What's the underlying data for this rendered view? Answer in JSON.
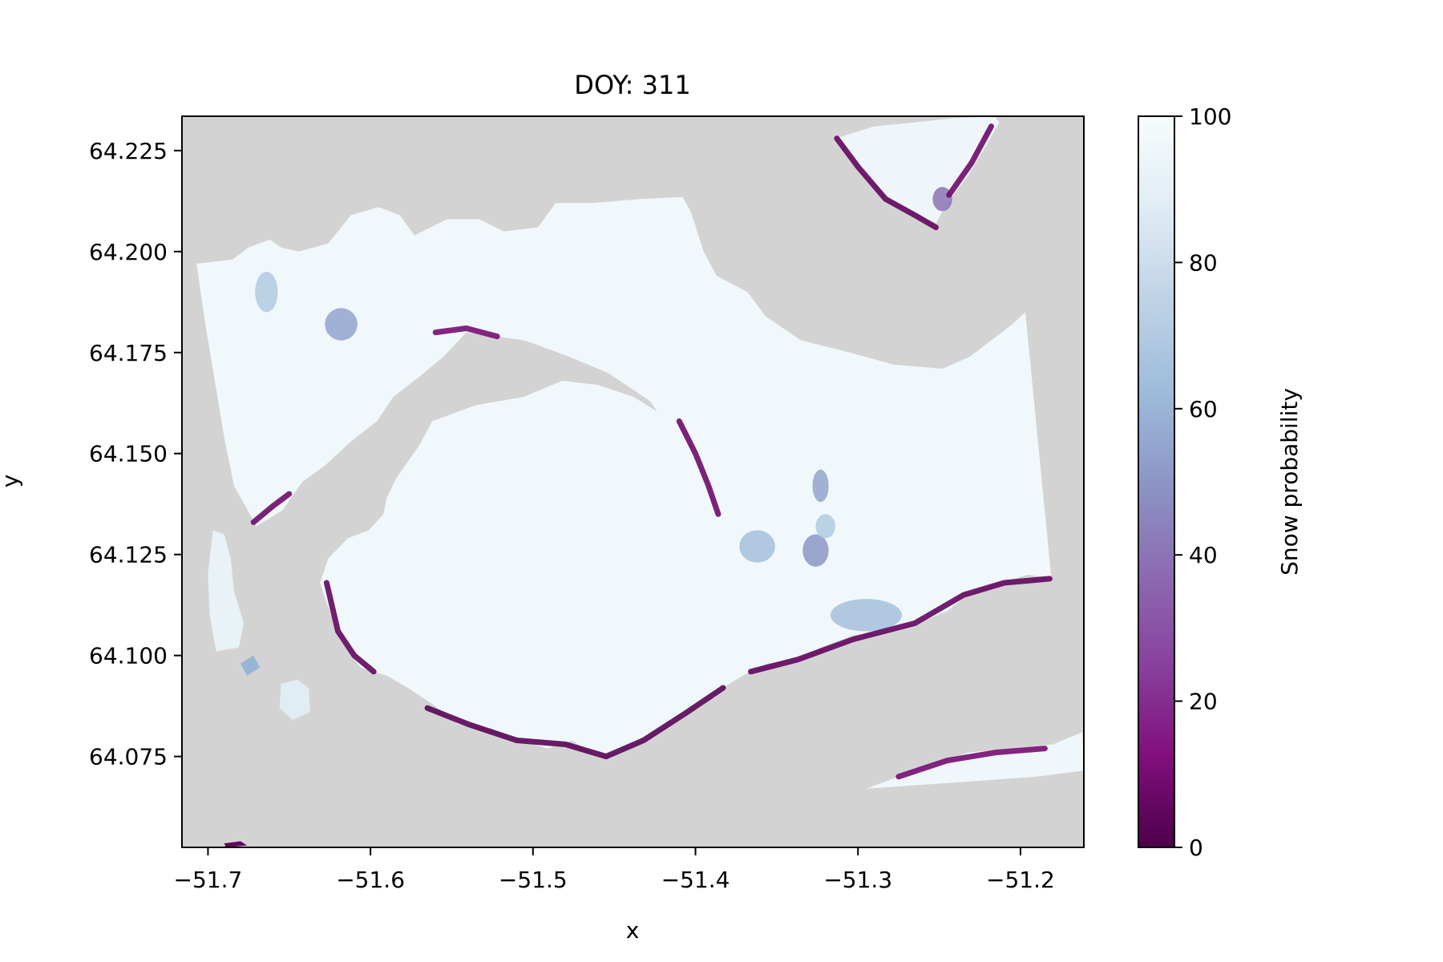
{
  "chart_data": {
    "type": "heatmap",
    "title": "DOY: 311",
    "xlabel": "x",
    "ylabel": "y",
    "xlim": [
      -51.716,
      -51.161
    ],
    "ylim": [
      64.0525,
      64.2335
    ],
    "x_ticks": [
      -51.7,
      -51.6,
      -51.5,
      -51.4,
      -51.3,
      -51.2
    ],
    "x_tick_labels": [
      "−51.7",
      "−51.6",
      "−51.5",
      "−51.4",
      "−51.3",
      "−51.2"
    ],
    "y_ticks": [
      64.075,
      64.1,
      64.125,
      64.15,
      64.175,
      64.2,
      64.225
    ],
    "y_tick_labels": [
      "64.075",
      "64.100",
      "64.125",
      "64.150",
      "64.175",
      "64.200",
      "64.225"
    ],
    "colorbar": {
      "label": "Snow probability",
      "range": [
        0,
        100
      ],
      "ticks": [
        0,
        20,
        40,
        60,
        80,
        100
      ],
      "tick_labels": [
        "0",
        "20",
        "40",
        "60",
        "80",
        "100"
      ],
      "colormap": "BuPu",
      "stops": [
        "#4d004b",
        "#810f7c",
        "#88419d",
        "#8c6bb1",
        "#8c96c6",
        "#9ebcda",
        "#bfd3e6",
        "#e0ecf4",
        "#f7fcfd"
      ]
    },
    "nodata_color": "#d3d3d3",
    "regions": [
      {
        "name": "main-landmass",
        "snow_probability": 97,
        "polygon": [
          [
            -51.707,
            64.197
          ],
          [
            -51.685,
            64.198
          ],
          [
            -51.675,
            64.201
          ],
          [
            -51.662,
            64.203
          ],
          [
            -51.655,
            64.201
          ],
          [
            -51.644,
            64.2
          ],
          [
            -51.626,
            64.202
          ],
          [
            -51.612,
            64.209
          ],
          [
            -51.595,
            64.211
          ],
          [
            -51.582,
            64.209
          ],
          [
            -51.573,
            64.204
          ],
          [
            -51.553,
            64.208
          ],
          [
            -51.533,
            64.208
          ],
          [
            -51.518,
            64.205
          ],
          [
            -51.497,
            64.206
          ],
          [
            -51.486,
            64.212
          ],
          [
            -51.463,
            64.212
          ],
          [
            -51.434,
            64.213
          ],
          [
            -51.408,
            64.2135
          ],
          [
            -51.403,
            64.21
          ],
          [
            -51.395,
            64.2
          ],
          [
            -51.387,
            64.194
          ],
          [
            -51.368,
            64.19
          ],
          [
            -51.357,
            64.184
          ],
          [
            -51.335,
            64.178
          ],
          [
            -51.305,
            64.175
          ],
          [
            -51.278,
            64.172
          ],
          [
            -51.248,
            64.171
          ],
          [
            -51.231,
            64.174
          ],
          [
            -51.205,
            64.182
          ],
          [
            -51.197,
            64.185
          ],
          [
            -51.181,
            64.119
          ],
          [
            -51.195,
            64.12
          ],
          [
            -51.214,
            64.118
          ],
          [
            -51.233,
            64.115
          ],
          [
            -51.245,
            64.111
          ],
          [
            -51.263,
            64.108
          ],
          [
            -51.281,
            64.106
          ],
          [
            -51.303,
            64.105
          ],
          [
            -51.323,
            64.102
          ],
          [
            -51.337,
            64.099
          ],
          [
            -51.356,
            64.098
          ],
          [
            -51.371,
            64.095
          ],
          [
            -51.383,
            64.092
          ],
          [
            -51.398,
            64.087
          ],
          [
            -51.415,
            64.083
          ],
          [
            -51.432,
            64.079
          ],
          [
            -51.447,
            64.076
          ],
          [
            -51.461,
            64.075
          ],
          [
            -51.476,
            64.079
          ],
          [
            -51.491,
            64.077
          ],
          [
            -51.508,
            64.079
          ],
          [
            -51.526,
            64.082
          ],
          [
            -51.546,
            64.083
          ],
          [
            -51.562,
            64.088
          ],
          [
            -51.577,
            64.092
          ],
          [
            -51.59,
            64.095
          ],
          [
            -51.606,
            64.097
          ],
          [
            -51.619,
            64.104
          ],
          [
            -51.626,
            64.112
          ],
          [
            -51.631,
            64.118
          ],
          [
            -51.626,
            64.124
          ],
          [
            -51.614,
            64.129
          ],
          [
            -51.601,
            64.131
          ],
          [
            -51.592,
            64.135
          ],
          [
            -51.59,
            64.139
          ],
          [
            -51.584,
            64.144
          ],
          [
            -51.57,
            64.152
          ],
          [
            -51.562,
            64.158
          ],
          [
            -51.535,
            64.162
          ],
          [
            -51.506,
            64.164
          ],
          [
            -51.482,
            64.168
          ],
          [
            -51.46,
            64.167
          ],
          [
            -51.438,
            64.164
          ],
          [
            -51.422,
            64.16
          ],
          [
            -51.408,
            64.153
          ],
          [
            -51.397,
            64.146
          ],
          [
            -51.388,
            64.138
          ],
          [
            -51.376,
            64.133
          ],
          [
            -51.382,
            64.13
          ],
          [
            -51.392,
            64.139
          ],
          [
            -51.409,
            64.152
          ],
          [
            -51.428,
            64.163
          ],
          [
            -51.454,
            64.17
          ],
          [
            -51.478,
            64.174
          ],
          [
            -51.505,
            64.178
          ],
          [
            -51.523,
            64.179
          ],
          [
            -51.541,
            64.18
          ],
          [
            -51.555,
            64.174
          ],
          [
            -51.57,
            64.169
          ],
          [
            -51.586,
            64.164
          ],
          [
            -51.596,
            64.158
          ],
          [
            -51.612,
            64.153
          ],
          [
            -51.628,
            64.147
          ],
          [
            -51.642,
            64.143
          ],
          [
            -51.654,
            64.136
          ],
          [
            -51.67,
            64.132
          ],
          [
            -51.684,
            64.142
          ],
          [
            -51.69,
            64.154
          ],
          [
            -51.695,
            64.166
          ],
          [
            -51.702,
            64.183
          ],
          [
            -51.707,
            64.197
          ]
        ]
      },
      {
        "name": "north-islet",
        "snow_probability": 95,
        "polygon": [
          [
            -51.314,
            64.228
          ],
          [
            -51.29,
            64.231
          ],
          [
            -51.265,
            64.232
          ],
          [
            -51.241,
            64.233
          ],
          [
            -51.216,
            64.2335
          ],
          [
            -51.213,
            64.232
          ],
          [
            -51.22,
            64.227
          ],
          [
            -51.232,
            64.219
          ],
          [
            -51.245,
            64.212
          ],
          [
            -51.252,
            64.207
          ],
          [
            -51.263,
            64.209
          ],
          [
            -51.28,
            64.213
          ],
          [
            -51.296,
            64.219
          ],
          [
            -51.308,
            64.225
          ],
          [
            -51.314,
            64.228
          ]
        ]
      },
      {
        "name": "west-peninsula",
        "snow_probability": 92,
        "polygon": [
          [
            -51.697,
            64.131
          ],
          [
            -51.69,
            64.13
          ],
          [
            -51.686,
            64.124
          ],
          [
            -51.684,
            64.116
          ],
          [
            -51.678,
            64.108
          ],
          [
            -51.681,
            64.102
          ],
          [
            -51.695,
            64.101
          ],
          [
            -51.699,
            64.11
          ],
          [
            -51.7,
            64.12
          ],
          [
            -51.697,
            64.131
          ]
        ]
      },
      {
        "name": "small-island-a",
        "snow_probability": 88,
        "polygon": [
          [
            -51.655,
            64.093
          ],
          [
            -51.645,
            64.094
          ],
          [
            -51.638,
            64.092
          ],
          [
            -51.637,
            64.086
          ],
          [
            -51.648,
            64.084
          ],
          [
            -51.656,
            64.087
          ],
          [
            -51.655,
            64.093
          ]
        ]
      },
      {
        "name": "small-island-b",
        "snow_probability": 60,
        "polygon": [
          [
            -51.68,
            64.098
          ],
          [
            -51.672,
            64.1
          ],
          [
            -51.668,
            64.097
          ],
          [
            -51.676,
            64.095
          ],
          [
            -51.68,
            64.098
          ]
        ]
      },
      {
        "name": "southeast-strip",
        "snow_probability": 96,
        "polygon": [
          [
            -51.295,
            64.067
          ],
          [
            -51.262,
            64.072
          ],
          [
            -51.232,
            64.076
          ],
          [
            -51.205,
            64.077
          ],
          [
            -51.18,
            64.078
          ],
          [
            -51.162,
            64.081
          ],
          [
            -51.161,
            64.0715
          ],
          [
            -51.19,
            64.07
          ],
          [
            -51.225,
            64.069
          ],
          [
            -51.26,
            64.068
          ],
          [
            -51.295,
            64.067
          ]
        ]
      },
      {
        "name": "south-edge-sliver",
        "snow_probability": 5,
        "polygon": [
          [
            -51.69,
            64.0535
          ],
          [
            -51.68,
            64.054
          ],
          [
            -51.676,
            64.053
          ],
          [
            -51.689,
            64.0525
          ],
          [
            -51.69,
            64.0535
          ]
        ]
      }
    ],
    "patches": [
      {
        "name": "patch-center",
        "snow_probability": 65,
        "ellipse": {
          "cx": -51.362,
          "cy": 64.127,
          "rx": 0.011,
          "ry": 0.004
        }
      },
      {
        "name": "patch-east",
        "snow_probability": 55,
        "ellipse": {
          "cx": -51.323,
          "cy": 64.142,
          "rx": 0.005,
          "ry": 0.004
        }
      },
      {
        "name": "patch-ne-1",
        "snow_probability": 50,
        "ellipse": {
          "cx": -51.326,
          "cy": 64.126,
          "rx": 0.008,
          "ry": 0.004
        }
      },
      {
        "name": "patch-ne-2",
        "snow_probability": 70,
        "ellipse": {
          "cx": -51.32,
          "cy": 64.132,
          "rx": 0.006,
          "ry": 0.003
        }
      },
      {
        "name": "patch-west",
        "snow_probability": 70,
        "ellipse": {
          "cx": -51.664,
          "cy": 64.19,
          "rx": 0.007,
          "ry": 0.005
        }
      },
      {
        "name": "patch-nw",
        "snow_probability": 55,
        "ellipse": {
          "cx": -51.618,
          "cy": 64.182,
          "rx": 0.01,
          "ry": 0.004
        }
      },
      {
        "name": "patch-south-coast",
        "snow_probability": 65,
        "ellipse": {
          "cx": -51.295,
          "cy": 64.11,
          "rx": 0.022,
          "ry": 0.004
        }
      },
      {
        "name": "patch-north-islet",
        "snow_probability": 40,
        "ellipse": {
          "cx": -51.248,
          "cy": 64.213,
          "rx": 0.006,
          "ry": 0.003
        }
      }
    ],
    "coastal_low_probability_bands": [
      {
        "name": "band-sw",
        "snow_probability": 5,
        "line": [
          [
            -51.627,
            64.118
          ],
          [
            -51.62,
            64.106
          ],
          [
            -51.61,
            64.1
          ],
          [
            -51.598,
            64.096
          ]
        ]
      },
      {
        "name": "band-south",
        "snow_probability": 3,
        "line": [
          [
            -51.565,
            64.087
          ],
          [
            -51.54,
            64.083
          ],
          [
            -51.51,
            64.079
          ],
          [
            -51.48,
            64.078
          ],
          [
            -51.455,
            64.075
          ],
          [
            -51.432,
            64.079
          ],
          [
            -51.405,
            64.086
          ],
          [
            -51.383,
            64.092
          ]
        ]
      },
      {
        "name": "band-south-east",
        "snow_probability": 5,
        "line": [
          [
            -51.366,
            64.096
          ],
          [
            -51.337,
            64.099
          ],
          [
            -51.303,
            64.104
          ],
          [
            -51.265,
            64.108
          ],
          [
            -51.235,
            64.115
          ],
          [
            -51.21,
            64.118
          ],
          [
            -51.182,
            64.119
          ]
        ]
      },
      {
        "name": "band-fjord-south",
        "snow_probability": 8,
        "line": [
          [
            -51.41,
            64.158
          ],
          [
            -51.4,
            64.15
          ],
          [
            -51.392,
            64.142
          ],
          [
            -51.386,
            64.135
          ]
        ]
      },
      {
        "name": "band-fjord-north",
        "snow_probability": 10,
        "line": [
          [
            -51.56,
            64.18
          ],
          [
            -51.541,
            64.181
          ],
          [
            -51.522,
            64.179
          ]
        ]
      },
      {
        "name": "band-west",
        "snow_probability": 8,
        "line": [
          [
            -51.672,
            64.133
          ],
          [
            -51.66,
            64.137
          ],
          [
            -51.65,
            64.14
          ]
        ]
      },
      {
        "name": "band-north-islet",
        "snow_probability": 5,
        "line": [
          [
            -51.313,
            64.228
          ],
          [
            -51.3,
            64.221
          ],
          [
            -51.283,
            64.213
          ],
          [
            -51.265,
            64.209
          ],
          [
            -51.252,
            64.206
          ]
        ]
      },
      {
        "name": "band-north-islet-east",
        "snow_probability": 8,
        "line": [
          [
            -51.218,
            64.231
          ],
          [
            -51.23,
            64.222
          ],
          [
            -51.244,
            64.214
          ]
        ]
      },
      {
        "name": "band-se-strip",
        "snow_probability": 10,
        "line": [
          [
            -51.275,
            64.07
          ],
          [
            -51.245,
            64.074
          ],
          [
            -51.215,
            64.076
          ],
          [
            -51.185,
            64.077
          ]
        ]
      }
    ]
  }
}
